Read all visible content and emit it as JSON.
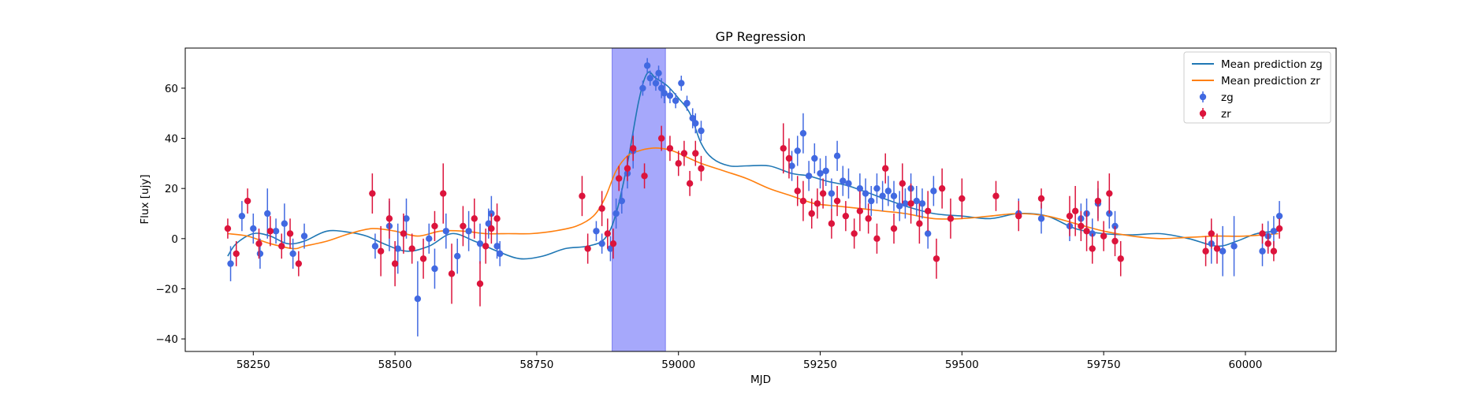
{
  "chart_data": {
    "type": "scatter",
    "title": "GP Regression",
    "xlabel": "MJD",
    "ylabel": "Flux [ujy]",
    "xlim": [
      58130,
      60160
    ],
    "ylim": [
      -45,
      76
    ],
    "x_ticks": [
      58250,
      58500,
      58750,
      59000,
      59250,
      59500,
      59750,
      60000
    ],
    "y_ticks": [
      -40,
      -20,
      0,
      20,
      40,
      60
    ],
    "grid": false,
    "legend_position": "top-right",
    "highlight_span": {
      "x0": 58883,
      "x1": 58977,
      "color": "#a6a8fb"
    },
    "series": [
      {
        "name": "Mean prediction zg",
        "kind": "line",
        "color": "#1f77b4",
        "x": [
          58205,
          58220,
          58250,
          58280,
          58310,
          58340,
          58380,
          58420,
          58450,
          58480,
          58520,
          58560,
          58600,
          58640,
          58680,
          58720,
          58760,
          58800,
          58840,
          58870,
          58890,
          58910,
          58930,
          58945,
          58960,
          58980,
          59000,
          59020,
          59040,
          59060,
          59090,
          59120,
          59160,
          59200,
          59230,
          59260,
          59300,
          59350,
          59400,
          59450,
          59500,
          59550,
          59600,
          59650,
          59700,
          59750,
          59800,
          59850,
          59900,
          59950,
          59985,
          60020,
          60058
        ],
        "y": [
          -7,
          -2,
          2,
          1,
          -2,
          -1,
          3,
          2.5,
          1,
          -2,
          -5,
          -3,
          2,
          -1,
          -5,
          -8,
          -7,
          -4,
          -3,
          0,
          10,
          30,
          55,
          66,
          64,
          61,
          56,
          50,
          38,
          32,
          29,
          29,
          29,
          26,
          25,
          23,
          21,
          17,
          13,
          10,
          9,
          8,
          10,
          9,
          4,
          2,
          1.5,
          2,
          0,
          -3,
          -1,
          2,
          3
        ]
      },
      {
        "name": "Mean prediction zr",
        "kind": "line",
        "color": "#ff7f0e",
        "x": [
          58205,
          58240,
          58280,
          58320,
          58340,
          58380,
          58420,
          58460,
          58500,
          58540,
          58580,
          58620,
          58660,
          58700,
          58740,
          58780,
          58820,
          58850,
          58870,
          58890,
          58910,
          58930,
          58950,
          58970,
          58990,
          59010,
          59040,
          59080,
          59120,
          59160,
          59200,
          59240,
          59280,
          59320,
          59360,
          59400,
          59450,
          59500,
          59550,
          59600,
          59650,
          59700,
          59750,
          59800,
          59850,
          59900,
          59950,
          60000,
          60058
        ],
        "y": [
          2,
          1,
          -2,
          -4,
          -3,
          -1,
          2,
          4,
          3,
          1,
          3,
          3,
          2,
          2,
          2,
          3,
          5,
          9,
          16,
          27,
          33,
          35,
          36,
          36,
          35,
          33,
          30,
          27,
          24,
          20,
          17,
          14,
          13,
          12,
          11,
          10,
          8,
          8,
          9,
          10,
          9,
          6,
          3,
          1,
          0,
          0.5,
          1,
          1,
          2
        ]
      },
      {
        "name": "zg",
        "kind": "errorbar",
        "color": "#4169e1",
        "x": [
          58210,
          58230,
          58250,
          58262,
          58275,
          58290,
          58305,
          58320,
          58340,
          58465,
          58490,
          58505,
          58520,
          58540,
          58560,
          58570,
          58590,
          58610,
          58630,
          58650,
          58665,
          58670,
          58680,
          58685,
          58855,
          58865,
          58880,
          58890,
          58900,
          58910,
          58920,
          58937,
          58945,
          58950,
          58960,
          58965,
          58970,
          58975,
          58985,
          58995,
          59005,
          59015,
          59025,
          59030,
          59040,
          59200,
          59210,
          59220,
          59230,
          59240,
          59250,
          59260,
          59270,
          59280,
          59290,
          59300,
          59320,
          59330,
          59340,
          59350,
          59360,
          59370,
          59380,
          59390,
          59400,
          59410,
          59420,
          59430,
          59440,
          59450,
          59600,
          59640,
          59690,
          59710,
          59720,
          59730,
          59740,
          59760,
          59770,
          59940,
          59960,
          59980,
          60030,
          60040,
          60050,
          60060
        ],
        "y": [
          -10,
          9,
          4,
          -6,
          10,
          3,
          6,
          -6,
          1,
          -3,
          5,
          -4,
          8,
          -24,
          0,
          -12,
          3,
          -7,
          3,
          -2,
          6,
          10,
          -3,
          -6,
          3,
          -2,
          -4,
          10,
          15,
          26,
          35,
          60,
          69,
          64,
          62,
          66,
          60,
          58,
          57,
          55,
          62,
          54,
          48,
          46,
          43,
          29,
          35,
          42,
          25,
          32,
          26,
          27,
          18,
          33,
          23,
          22,
          20,
          18,
          15,
          20,
          17,
          19,
          17,
          13,
          14,
          20,
          15,
          14,
          2,
          19,
          10,
          8,
          5,
          8,
          10,
          2,
          14,
          10,
          5,
          -2,
          -5,
          -3,
          -5,
          1,
          3,
          9
        ],
        "err": [
          7,
          6,
          6,
          6,
          10,
          5,
          8,
          6,
          5,
          5,
          10,
          10,
          8,
          15,
          6,
          8,
          7,
          7,
          8,
          8,
          6,
          7,
          5,
          5,
          4,
          4,
          5,
          6,
          5,
          6,
          7,
          3,
          3,
          3,
          3,
          3,
          4,
          4,
          3,
          3,
          3,
          3,
          4,
          4,
          4,
          6,
          6,
          8,
          6,
          6,
          6,
          6,
          6,
          6,
          6,
          6,
          6,
          6,
          6,
          6,
          6,
          6,
          6,
          6,
          6,
          6,
          6,
          6,
          6,
          6,
          6,
          6,
          6,
          6,
          6,
          6,
          6,
          6,
          6,
          8,
          10,
          12,
          6,
          6,
          6,
          6
        ]
      },
      {
        "name": "zr",
        "kind": "errorbar",
        "color": "#dc143c",
        "x": [
          58205,
          58220,
          58240,
          58260,
          58280,
          58300,
          58315,
          58330,
          58460,
          58475,
          58490,
          58500,
          58515,
          58530,
          58550,
          58570,
          58585,
          58600,
          58620,
          58640,
          58650,
          58660,
          58670,
          58680,
          58830,
          58840,
          58865,
          58875,
          58885,
          58895,
          58910,
          58920,
          58940,
          58970,
          58985,
          59000,
          59010,
          59020,
          59030,
          59040,
          59185,
          59195,
          59210,
          59220,
          59235,
          59245,
          59255,
          59270,
          59280,
          59295,
          59310,
          59320,
          59335,
          59350,
          59365,
          59380,
          59395,
          59410,
          59425,
          59440,
          59455,
          59465,
          59480,
          59500,
          59560,
          59600,
          59640,
          59690,
          59700,
          59710,
          59720,
          59730,
          59740,
          59750,
          59760,
          59770,
          59780,
          59930,
          59940,
          59950,
          60030,
          60040,
          60050,
          60060
        ],
        "y": [
          4,
          -6,
          15,
          -2,
          3,
          -3,
          2,
          -10,
          18,
          -5,
          8,
          -10,
          2,
          -4,
          -8,
          5,
          18,
          -14,
          5,
          8,
          -18,
          -3,
          4,
          8,
          17,
          -4,
          12,
          2,
          -2,
          24,
          28,
          36,
          25,
          40,
          36,
          30,
          34,
          22,
          34,
          28,
          36,
          32,
          19,
          15,
          10,
          14,
          18,
          6,
          15,
          9,
          2,
          11,
          8,
          0,
          28,
          4,
          22,
          14,
          6,
          11,
          -8,
          20,
          8,
          16,
          17,
          9,
          16,
          9,
          11,
          5,
          3,
          -4,
          15,
          1,
          18,
          -1,
          -8,
          -5,
          2,
          -4,
          2,
          -2,
          -5,
          4
        ],
        "err": [
          4,
          5,
          5,
          6,
          6,
          5,
          6,
          5,
          8,
          10,
          8,
          9,
          8,
          6,
          8,
          6,
          12,
          12,
          8,
          8,
          9,
          7,
          6,
          6,
          8,
          6,
          7,
          6,
          6,
          5,
          5,
          5,
          5,
          5,
          5,
          5,
          5,
          5,
          5,
          5,
          10,
          8,
          6,
          8,
          6,
          6,
          6,
          6,
          6,
          6,
          6,
          8,
          6,
          6,
          6,
          6,
          8,
          8,
          8,
          8,
          8,
          8,
          8,
          8,
          6,
          6,
          4,
          8,
          10,
          6,
          8,
          6,
          8,
          6,
          8,
          6,
          7,
          6,
          6,
          6,
          4,
          4,
          4,
          4
        ]
      }
    ]
  }
}
